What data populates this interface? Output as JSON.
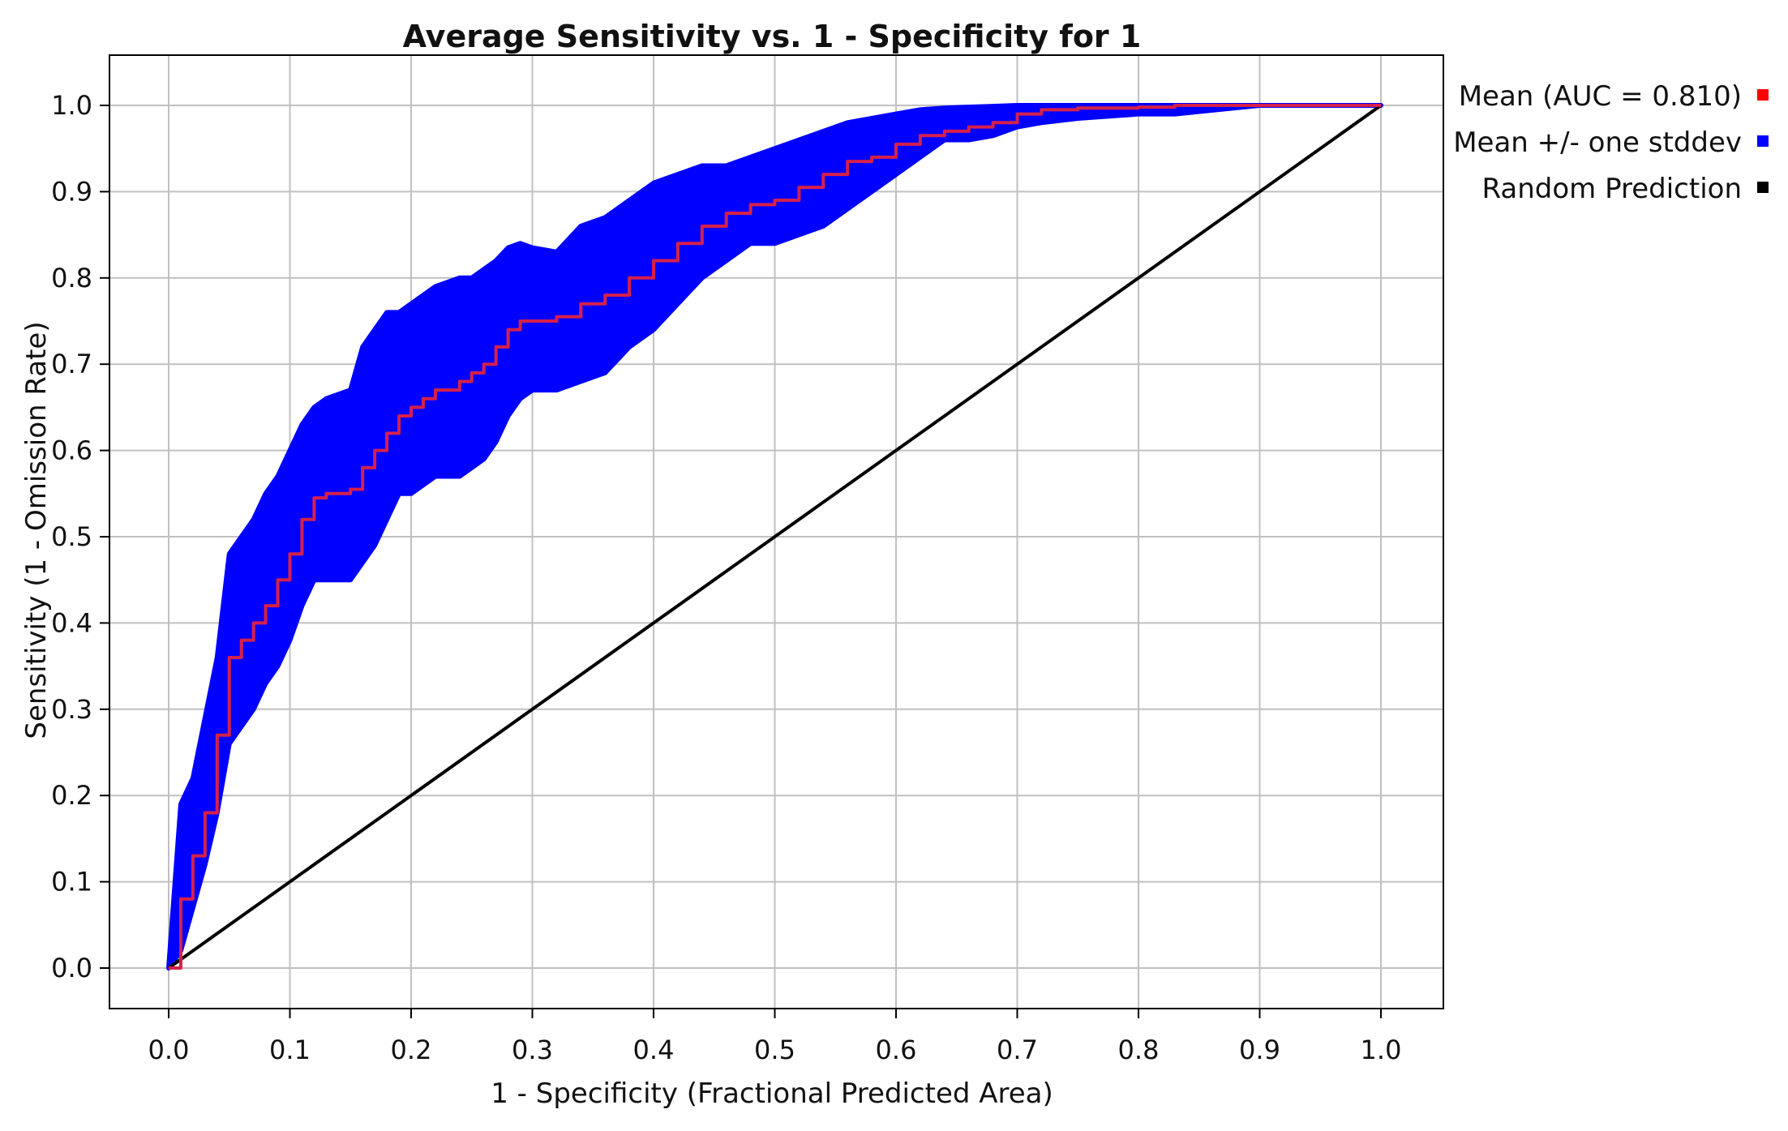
{
  "chart_data": {
    "type": "line",
    "title": "Average Sensitivity vs. 1 - Specificity for 1",
    "xlabel": "1 - Specificity (Fractional Predicted Area)",
    "ylabel": "Sensitivity (1 - Omission Rate)",
    "xlim": [
      0.0,
      1.0
    ],
    "ylim": [
      0.0,
      1.0
    ],
    "grid": true,
    "legend_position": "right",
    "x_ticks": [
      "0.0",
      "0.1",
      "0.2",
      "0.3",
      "0.4",
      "0.5",
      "0.6",
      "0.7",
      "0.8",
      "0.9",
      "1.0"
    ],
    "y_ticks": [
      "0.0",
      "0.1",
      "0.2",
      "0.3",
      "0.4",
      "0.5",
      "0.6",
      "0.7",
      "0.8",
      "0.9",
      "1.0"
    ],
    "series": [
      {
        "name": "Mean (AUC = 0.810)",
        "color": "#ff0000",
        "x": [
          0.0,
          0.01,
          0.02,
          0.03,
          0.04,
          0.05,
          0.06,
          0.07,
          0.08,
          0.09,
          0.1,
          0.11,
          0.12,
          0.13,
          0.15,
          0.16,
          0.17,
          0.18,
          0.19,
          0.2,
          0.21,
          0.22,
          0.24,
          0.25,
          0.26,
          0.27,
          0.28,
          0.29,
          0.3,
          0.32,
          0.34,
          0.36,
          0.38,
          0.4,
          0.42,
          0.44,
          0.46,
          0.48,
          0.5,
          0.52,
          0.54,
          0.56,
          0.58,
          0.6,
          0.62,
          0.64,
          0.66,
          0.68,
          0.7,
          0.72,
          0.75,
          0.8,
          0.83,
          0.9,
          1.0
        ],
        "y": [
          0.0,
          0.08,
          0.13,
          0.18,
          0.27,
          0.36,
          0.38,
          0.4,
          0.42,
          0.45,
          0.48,
          0.52,
          0.545,
          0.55,
          0.555,
          0.58,
          0.6,
          0.62,
          0.64,
          0.65,
          0.66,
          0.67,
          0.68,
          0.69,
          0.7,
          0.72,
          0.74,
          0.75,
          0.75,
          0.755,
          0.77,
          0.78,
          0.8,
          0.82,
          0.84,
          0.86,
          0.875,
          0.885,
          0.89,
          0.905,
          0.92,
          0.935,
          0.94,
          0.955,
          0.965,
          0.97,
          0.975,
          0.98,
          0.99,
          0.995,
          0.997,
          0.998,
          1.0,
          1.0,
          1.0
        ]
      },
      {
        "name": "Mean +/- one stddev",
        "color": "#0000ff",
        "x": [
          0.0,
          0.01,
          0.02,
          0.03,
          0.04,
          0.05,
          0.06,
          0.07,
          0.08,
          0.09,
          0.1,
          0.11,
          0.12,
          0.13,
          0.15,
          0.16,
          0.17,
          0.18,
          0.19,
          0.2,
          0.21,
          0.22,
          0.24,
          0.25,
          0.26,
          0.27,
          0.28,
          0.29,
          0.3,
          0.32,
          0.34,
          0.36,
          0.38,
          0.4,
          0.42,
          0.44,
          0.46,
          0.48,
          0.5,
          0.52,
          0.54,
          0.56,
          0.58,
          0.6,
          0.62,
          0.64,
          0.66,
          0.68,
          0.7,
          0.72,
          0.75,
          0.8,
          0.83,
          0.9,
          1.0
        ],
        "upper": [
          0.0,
          0.19,
          0.22,
          0.29,
          0.36,
          0.48,
          0.5,
          0.52,
          0.55,
          0.57,
          0.6,
          0.63,
          0.65,
          0.66,
          0.67,
          0.72,
          0.74,
          0.76,
          0.76,
          0.77,
          0.78,
          0.79,
          0.8,
          0.8,
          0.81,
          0.82,
          0.835,
          0.84,
          0.835,
          0.83,
          0.86,
          0.87,
          0.89,
          0.91,
          0.92,
          0.93,
          0.93,
          0.94,
          0.95,
          0.96,
          0.97,
          0.98,
          0.985,
          0.99,
          0.995,
          0.997,
          0.998,
          0.999,
          1.0,
          1.0,
          1.0,
          1.0,
          1.0,
          1.0,
          1.0
        ],
        "lower": [
          0.0,
          0.02,
          0.07,
          0.12,
          0.18,
          0.26,
          0.28,
          0.3,
          0.33,
          0.35,
          0.38,
          0.42,
          0.45,
          0.45,
          0.45,
          0.47,
          0.49,
          0.52,
          0.55,
          0.55,
          0.56,
          0.57,
          0.57,
          0.58,
          0.59,
          0.61,
          0.64,
          0.66,
          0.67,
          0.67,
          0.68,
          0.69,
          0.72,
          0.74,
          0.77,
          0.8,
          0.82,
          0.84,
          0.84,
          0.85,
          0.86,
          0.88,
          0.9,
          0.92,
          0.94,
          0.96,
          0.96,
          0.965,
          0.975,
          0.98,
          0.985,
          0.99,
          0.99,
          1.0,
          1.0
        ]
      },
      {
        "name": "Random Prediction",
        "color": "#000000",
        "x": [
          0.0,
          1.0
        ],
        "y": [
          0.0,
          1.0
        ]
      }
    ]
  }
}
